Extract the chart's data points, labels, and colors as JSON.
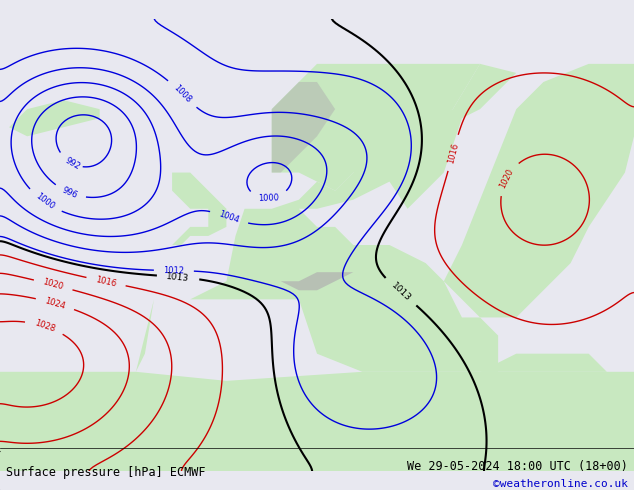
{
  "title_left": "Surface pressure [hPa] ECMWF",
  "title_right": "We 29-05-2024 18:00 UTC (18+00)",
  "copyright": "©weatheronline.co.uk",
  "bg_color_ocean": "#e8e8f0",
  "bg_color_land": "#c8e8c0",
  "bg_color_mountain": "#b0b0b0",
  "text_color_left": "#000000",
  "text_color_right": "#000000",
  "text_color_copyright": "#0000cc",
  "bottom_bar_color": "#ffffff",
  "figsize": [
    6.34,
    4.9
  ],
  "dpi": 100
}
